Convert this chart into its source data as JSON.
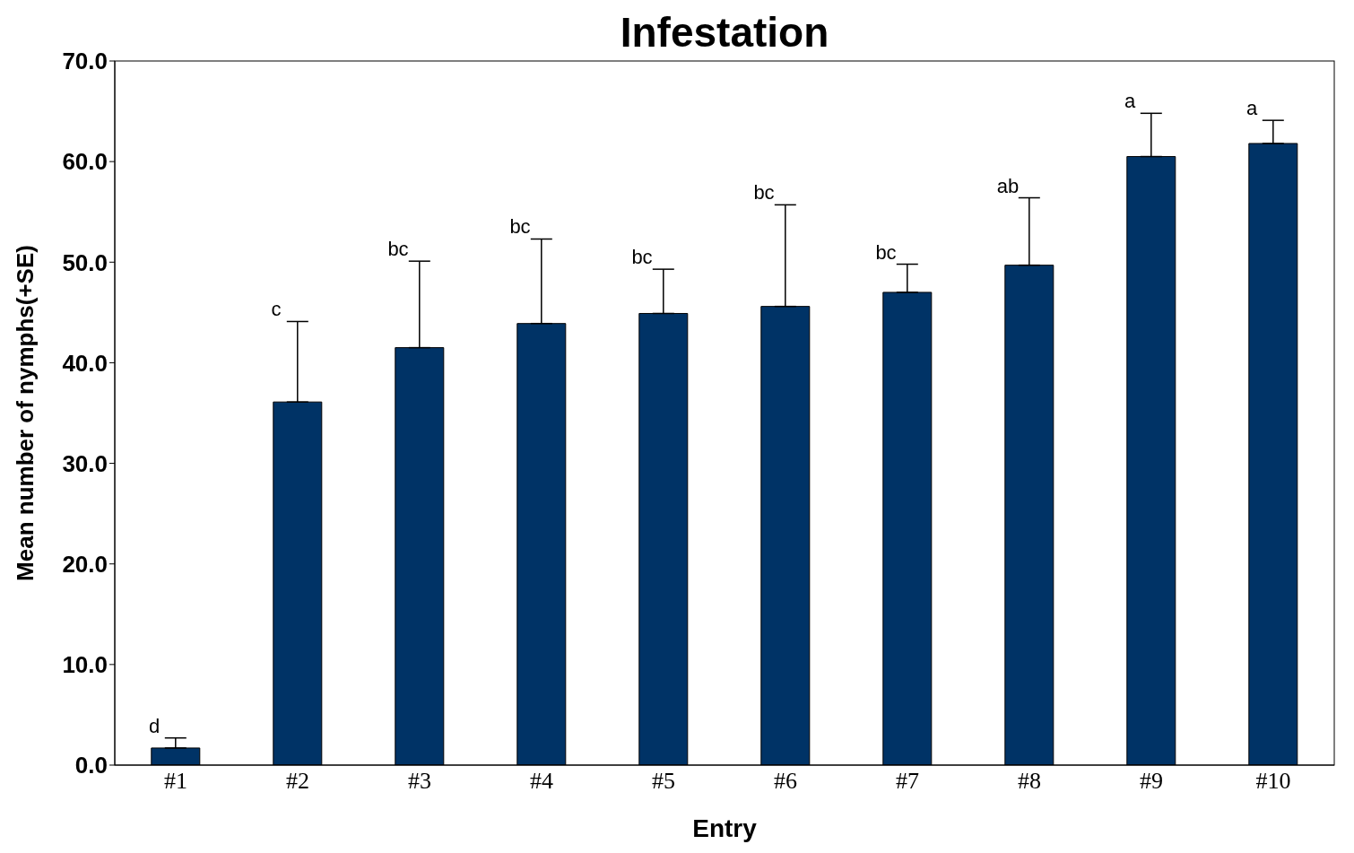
{
  "chart_data": {
    "type": "bar",
    "title": "Infestation",
    "xlabel": "Entry",
    "ylabel": "Mean number of nymphs(+SE)",
    "categories": [
      "#1",
      "#2",
      "#3",
      "#4",
      "#5",
      "#6",
      "#7",
      "#8",
      "#9",
      "#10"
    ],
    "values": [
      1.7,
      36.1,
      41.5,
      43.9,
      44.9,
      45.6,
      47.0,
      49.7,
      60.5,
      61.8
    ],
    "errors": [
      [
        1.7,
        2.7
      ],
      [
        36.1,
        44.1
      ],
      [
        41.5,
        50.1
      ],
      [
        43.9,
        52.3
      ],
      [
        44.9,
        49.3
      ],
      [
        45.6,
        55.7
      ],
      [
        47.0,
        49.8
      ],
      [
        49.7,
        56.4
      ],
      [
        60.5,
        64.8
      ],
      [
        61.8,
        64.1
      ]
    ],
    "color": "#003366",
    "ylim": [
      0,
      70
    ],
    "yticks": [
      {
        "value": 0,
        "label": "0.0"
      },
      {
        "value": 10,
        "label": "10.0"
      },
      {
        "value": 20,
        "label": "20.0"
      },
      {
        "value": 30,
        "label": "30.0"
      },
      {
        "value": 40,
        "label": "40.0"
      },
      {
        "value": 50,
        "label": "50.0"
      },
      {
        "value": 60,
        "label": "60.0"
      },
      {
        "value": 70,
        "label": "70.0"
      }
    ],
    "grid": false,
    "legend": false,
    "annotations": [
      {
        "text": "d",
        "x": "#1",
        "y": 2.7
      },
      {
        "text": "c",
        "x": "#2",
        "y": 44.1
      },
      {
        "text": "bc",
        "x": "#3",
        "y": 50.1
      },
      {
        "text": "bc",
        "x": "#4",
        "y": 52.3
      },
      {
        "text": "bc",
        "x": "#5",
        "y": 49.3
      },
      {
        "text": "bc",
        "x": "#6",
        "y": 55.7
      },
      {
        "text": "bc",
        "x": "#7",
        "y": 49.8
      },
      {
        "text": "ab",
        "x": "#8",
        "y": 56.4
      },
      {
        "text": "a",
        "x": "#9",
        "y": 64.8
      },
      {
        "text": "a",
        "x": "#10",
        "y": 64.1
      }
    ]
  }
}
